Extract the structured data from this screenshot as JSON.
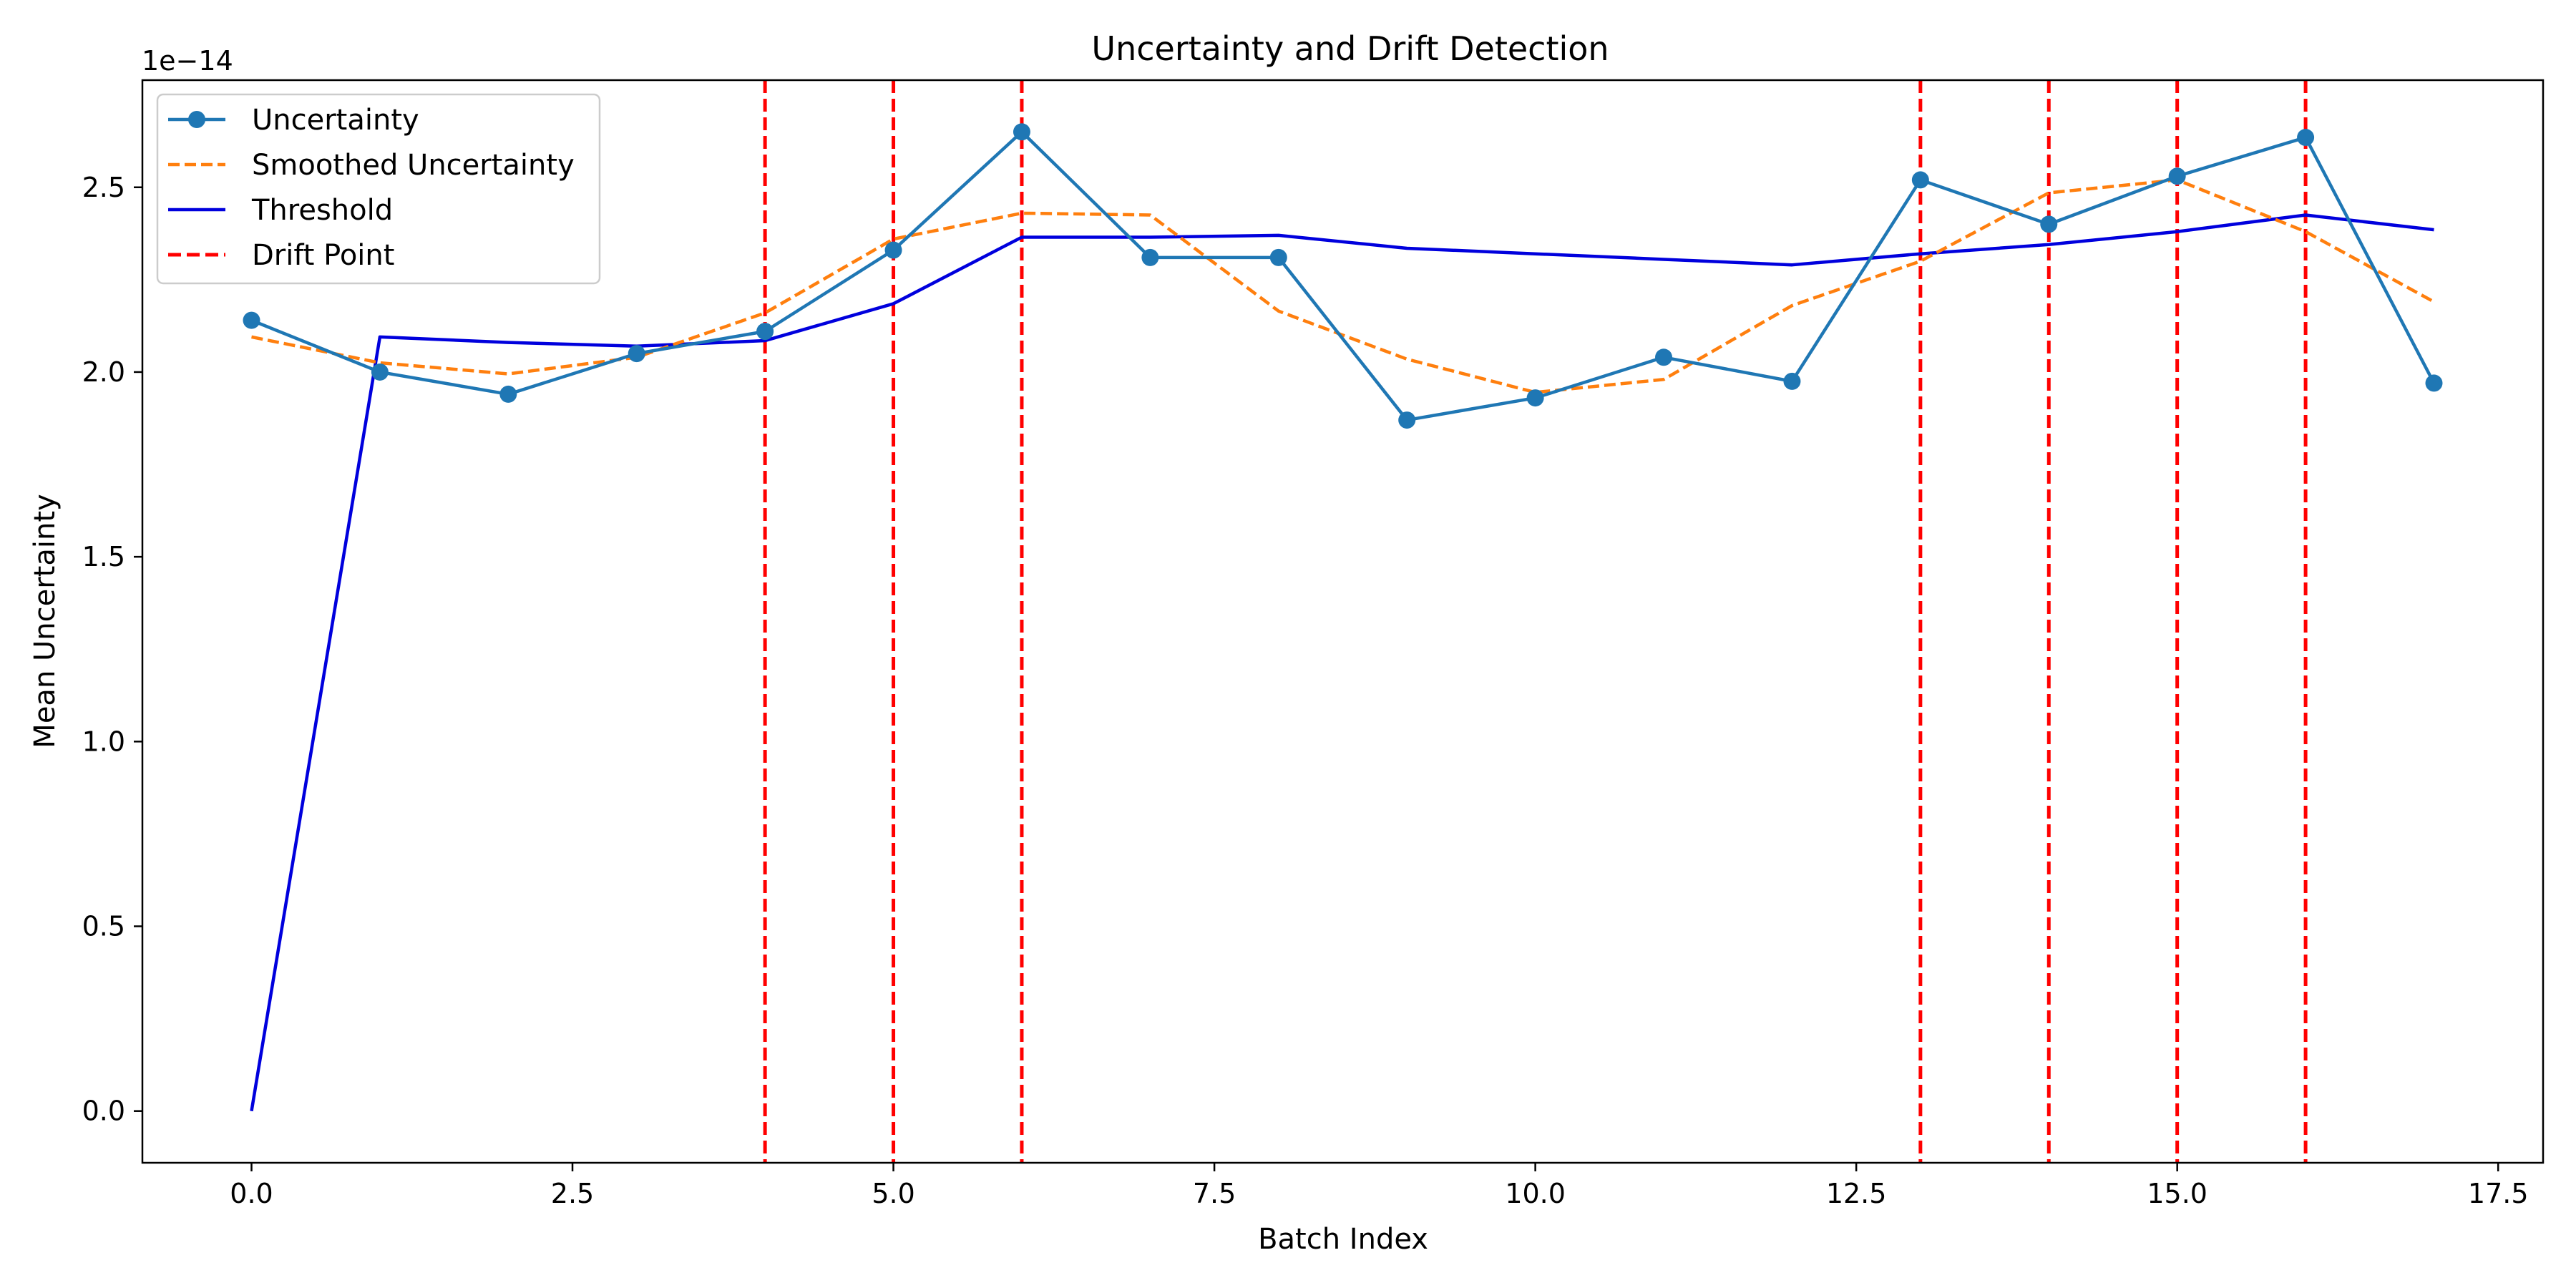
{
  "chart_data": {
    "type": "line",
    "title": "Uncertainty and Drift Detection",
    "xlabel": "Batch Index",
    "ylabel": "Mean Uncertainty",
    "y_offset_label": "1e−14",
    "xlim": [
      -0.85,
      17.85
    ],
    "ylim": [
      -0.14,
      2.79
    ],
    "x_ticks": [
      0,
      2.5,
      5,
      7.5,
      10,
      12.5,
      15,
      17.5
    ],
    "x_tick_labels": [
      "0.0",
      "2.5",
      "5.0",
      "7.5",
      "10.0",
      "12.5",
      "15.0",
      "17.5"
    ],
    "y_ticks": [
      0,
      0.5,
      1,
      1.5,
      2,
      2.5
    ],
    "y_tick_labels": [
      "0.0",
      "0.5",
      "1.0",
      "1.5",
      "2.0",
      "2.5"
    ],
    "grid": false,
    "legend_position": "top-left",
    "x": [
      0,
      1,
      2,
      3,
      4,
      5,
      6,
      7,
      8,
      9,
      10,
      11,
      12,
      13,
      14,
      15,
      16,
      17
    ],
    "series": [
      {
        "name": "Uncertainty",
        "style": "solid-marker",
        "color": "#1f77b4",
        "values": [
          2.14,
          2.0,
          1.94,
          2.05,
          2.11,
          2.33,
          2.65,
          2.31,
          2.31,
          1.87,
          1.93,
          2.04,
          1.975,
          2.52,
          2.4,
          2.53,
          2.635,
          1.97
        ]
      },
      {
        "name": "Smoothed Uncertainty",
        "style": "dashed",
        "color": "#ff7f0e",
        "values": [
          2.095,
          2.025,
          1.995,
          2.04,
          2.16,
          2.36,
          2.43,
          2.425,
          2.165,
          2.035,
          1.945,
          1.98,
          2.18,
          2.3,
          2.485,
          2.52,
          2.38,
          2.19
        ]
      },
      {
        "name": "Threshold",
        "style": "solid",
        "color": "#0000dd",
        "values": [
          0.0,
          2.095,
          2.08,
          2.07,
          2.085,
          2.185,
          2.365,
          2.365,
          2.37,
          2.335,
          2.32,
          2.305,
          2.29,
          2.32,
          2.345,
          2.38,
          2.425,
          2.385
        ]
      }
    ],
    "drift_points": {
      "name": "Drift Point",
      "style": "dashed-vertical",
      "color": "#ff0000",
      "x": [
        4,
        5,
        6,
        13,
        14,
        15,
        16
      ]
    }
  }
}
